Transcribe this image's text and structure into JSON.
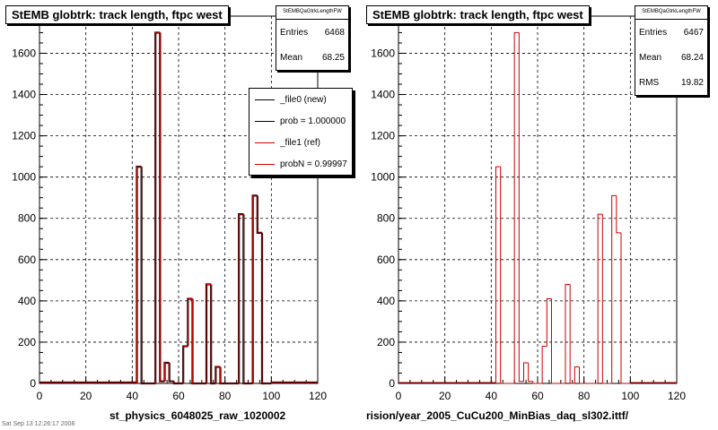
{
  "colors": {
    "new": "#000000",
    "ref": "#cc0000",
    "grid": "#000000"
  },
  "corner_text": "Sat Sep 13 12:26:17 2008",
  "panels": [
    {
      "title": "StEMB globtrk: track length, ftpc west",
      "stats": {
        "name": "StEMBQaGtrkLengthFW",
        "rows": [
          {
            "label": "Entries",
            "value": "6468"
          },
          {
            "label": "Mean",
            "value": "68.25"
          }
        ]
      },
      "legend": [
        "_file0 (new)",
        "prob = 1.000000",
        "_file1 (ref)",
        "probN = 0.99997"
      ],
      "xlabel": "st_physics_6048025_raw_1020002"
    },
    {
      "title": "StEMB globtrk: track length, ftpc west",
      "stats": {
        "name": "StEMBQaGtrkLengthFW",
        "rows": [
          {
            "label": "Entries",
            "value": "6467"
          },
          {
            "label": "Mean",
            "value": "68.24"
          },
          {
            "label": "RMS",
            "value": "19.82"
          }
        ]
      },
      "xlabel": "rision/year_2005_CuCu200_MinBias_daq_sl302.ittf/"
    }
  ],
  "chart_data": [
    {
      "type": "bar",
      "title": "StEMB globtrk: track length, ftpc west",
      "xlabel": "st_physics_6048025_raw_1020002",
      "ylabel": "",
      "xlim": [
        0,
        120
      ],
      "ylim": [
        0,
        1780
      ],
      "xticks": [
        0,
        20,
        40,
        60,
        80,
        100,
        120
      ],
      "yticks": [
        0,
        200,
        400,
        600,
        800,
        1000,
        1200,
        1400,
        1600
      ],
      "grid": true,
      "bin_width": 2,
      "bins_x": [
        42,
        44,
        46,
        48,
        50,
        52,
        54,
        56,
        58,
        60,
        62,
        64,
        66,
        68,
        70,
        72,
        74,
        76,
        78,
        80,
        82,
        84,
        86,
        88,
        90,
        92,
        94,
        96,
        98
      ],
      "series": [
        {
          "name": "_file0 (new)",
          "values": [
            1050,
            0,
            0,
            0,
            1700,
            10,
            100,
            10,
            0,
            0,
            180,
            410,
            0,
            0,
            0,
            480,
            0,
            80,
            0,
            0,
            0,
            0,
            820,
            0,
            0,
            910,
            730,
            0,
            0
          ]
        },
        {
          "name": "_file1 (ref)",
          "values": [
            1050,
            0,
            0,
            0,
            1700,
            10,
            100,
            10,
            0,
            0,
            180,
            410,
            0,
            0,
            0,
            480,
            0,
            80,
            0,
            0,
            0,
            0,
            820,
            0,
            0,
            910,
            730,
            0,
            0
          ]
        }
      ]
    },
    {
      "type": "bar",
      "title": "StEMB globtrk: track length, ftpc west",
      "xlabel": "rision/year_2005_CuCu200_MinBias_daq_sl302.ittf/",
      "ylabel": "",
      "xlim": [
        0,
        120
      ],
      "ylim": [
        0,
        1780
      ],
      "xticks": [
        0,
        20,
        40,
        60,
        80,
        100,
        120
      ],
      "yticks": [
        0,
        200,
        400,
        600,
        800,
        1000,
        1200,
        1400,
        1600
      ],
      "grid": true,
      "bin_width": 2,
      "bins_x": [
        42,
        44,
        46,
        48,
        50,
        52,
        54,
        56,
        58,
        60,
        62,
        64,
        66,
        68,
        70,
        72,
        74,
        76,
        78,
        80,
        82,
        84,
        86,
        88,
        90,
        92,
        94,
        96,
        98
      ],
      "series": [
        {
          "name": "_file1 (ref)",
          "values": [
            1050,
            0,
            0,
            0,
            1700,
            10,
            100,
            10,
            0,
            0,
            180,
            410,
            0,
            0,
            0,
            480,
            0,
            80,
            0,
            0,
            0,
            0,
            820,
            0,
            0,
            910,
            730,
            0,
            0
          ]
        }
      ]
    }
  ]
}
